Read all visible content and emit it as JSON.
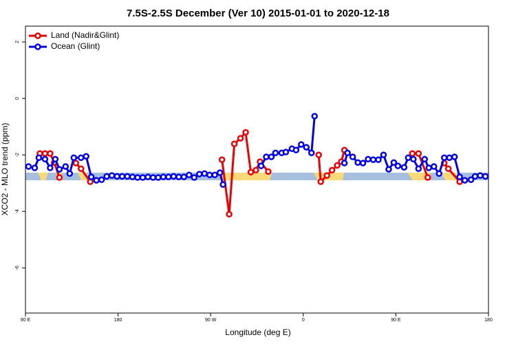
{
  "chart_data": {
    "type": "line",
    "title": "7.5S-2.5S December (Ver 10)   2015-01-01 to 2020-12-18",
    "x_label": "Longitude (deg E)",
    "y_label": "XCO2 - MLO trend (ppm)",
    "xlim": [
      90,
      540
    ],
    "xticks": [
      {
        "value": 90,
        "label": "90 E"
      },
      {
        "value": 180,
        "label": "180"
      },
      {
        "value": 270,
        "label": "90 W"
      },
      {
        "value": 360,
        "label": "0"
      },
      {
        "value": 450,
        "label": "90 E"
      },
      {
        "value": 540,
        "label": "180"
      }
    ],
    "ylim": [
      -7.6,
      2.56
    ],
    "yticks": [
      -6,
      -4,
      -2,
      0,
      2
    ],
    "legend": "top-left",
    "series": [
      {
        "name": "Land (Nadir&Glint)",
        "color": "#ee0000",
        "x": [
          104,
          109,
          114,
          118,
          123,
          null,
          139,
          144,
          153,
          null,
          281,
          288,
          293,
          299,
          304,
          309,
          314,
          318,
          326,
          null,
          375,
          377,
          383,
          388,
          393,
          397,
          400,
          null,
          466,
          472,
          481,
          null,
          497,
          501,
          512
        ],
        "values": [
          -1.95,
          -1.95,
          -1.95,
          -2.27,
          -2.8,
          null,
          -2.29,
          -2.49,
          -2.95,
          null,
          -2.17,
          -4.1,
          -1.61,
          -1.41,
          -1.2,
          -2.61,
          -2.54,
          -2.24,
          -2.59,
          null,
          -2.0,
          -2.95,
          -2.73,
          -2.54,
          -2.37,
          -2.24,
          -1.83,
          null,
          -1.95,
          -1.95,
          -2.8,
          null,
          -2.29,
          -2.49,
          -2.95
        ]
      },
      {
        "name": "Ocean (Glint)",
        "color": "#0000ee",
        "x": [
          93,
          99,
          103,
          109,
          114,
          119,
          123,
          129,
          133,
          137,
          144,
          149,
          154,
          159,
          164,
          169,
          174,
          179,
          184,
          189,
          194,
          199,
          204,
          209,
          214,
          219,
          224,
          229,
          234,
          239,
          244,
          249,
          254,
          259,
          264,
          269,
          274,
          279,
          282,
          null,
          319,
          324,
          329,
          333,
          339,
          343,
          349,
          353,
          358,
          363,
          368,
          371,
          null,
          400,
          403,
          408,
          413,
          418,
          423,
          428,
          433,
          438,
          443,
          448,
          452,
          458,
          462,
          467,
          472,
          478,
          482,
          487,
          492,
          497,
          502,
          507,
          512,
          517,
          523,
          527,
          532,
          537
        ],
        "values": [
          -2.41,
          -2.46,
          -2.1,
          -2.15,
          -2.46,
          -2.15,
          -2.51,
          -2.41,
          -2.66,
          -2.1,
          -2.1,
          -2.05,
          -2.78,
          -2.9,
          -2.88,
          -2.76,
          -2.73,
          -2.76,
          -2.76,
          -2.76,
          -2.78,
          -2.8,
          -2.8,
          -2.78,
          -2.8,
          -2.8,
          -2.78,
          -2.78,
          -2.76,
          -2.78,
          -2.78,
          -2.71,
          -2.8,
          -2.68,
          -2.66,
          -2.71,
          -2.71,
          -2.63,
          -3.05,
          null,
          -2.39,
          -2.07,
          -2.07,
          -1.93,
          -1.93,
          -1.9,
          -1.78,
          -1.83,
          -1.63,
          -1.73,
          -1.93,
          -0.63,
          null,
          -2.29,
          -1.93,
          -2.07,
          -2.27,
          -2.29,
          -2.15,
          -2.17,
          -2.17,
          -2.0,
          -2.51,
          -2.27,
          -2.39,
          -2.44,
          -2.1,
          -2.15,
          -2.49,
          -2.15,
          -2.46,
          -2.41,
          -2.66,
          -2.1,
          -2.1,
          -2.07,
          -2.78,
          -2.9,
          -2.88,
          -2.76,
          -2.73,
          -2.76
        ]
      }
    ]
  }
}
